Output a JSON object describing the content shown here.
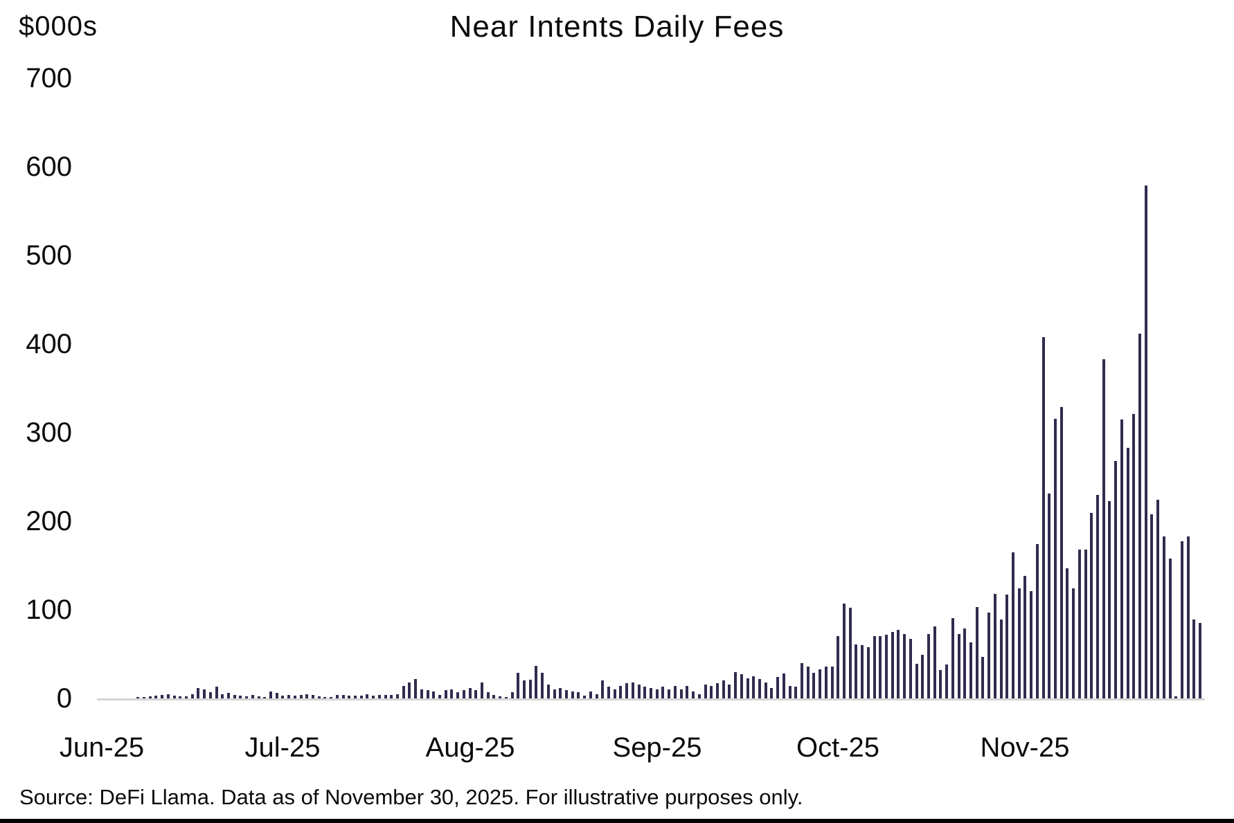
{
  "header": {
    "title": "Near Intents Daily Fees",
    "unit_label": "$000s"
  },
  "footer": {
    "source_note": "Source: DeFi Llama. Data as of November 30, 2025. For illustrative purposes only."
  },
  "colors": {
    "bar": "#322b4f",
    "baseline": "#d4d4d4",
    "text": "#0b0b0b",
    "bottom_rule": "#000000"
  },
  "chart_data": {
    "type": "bar",
    "title": "Near Intents Daily Fees",
    "ylabel": "$000s",
    "xlabel": "",
    "ylim": [
      0,
      700
    ],
    "y_ticks": [
      0,
      100,
      200,
      300,
      400,
      500,
      600,
      700
    ],
    "grid": false,
    "legend_position": "none",
    "x_tick_labels": [
      "Jun-25",
      "Jul-25",
      "Aug-25",
      "Sep-25",
      "Oct-25",
      "Nov-25"
    ],
    "series_name": "Near Intents daily fees ($000s)",
    "months": [
      {
        "label": "Jun-25",
        "values": [
          0,
          0,
          0,
          0,
          0,
          0,
          1,
          1,
          2,
          3,
          4,
          5,
          3,
          2,
          2,
          5,
          12,
          10,
          7,
          13,
          5,
          6,
          4,
          3,
          2,
          4,
          2,
          1,
          8,
          6
        ]
      },
      {
        "label": "Jul-25",
        "values": [
          3,
          4,
          3,
          4,
          5,
          4,
          2,
          1,
          1,
          4,
          4,
          3,
          3,
          3,
          5,
          3,
          4,
          4,
          4,
          5,
          14,
          18,
          22,
          10,
          9,
          8,
          4,
          9,
          10,
          7,
          9
        ]
      },
      {
        "label": "Aug-25",
        "values": [
          12,
          9,
          18,
          7,
          4,
          2,
          1,
          7,
          29,
          20,
          21,
          37,
          29,
          16,
          10,
          12,
          9,
          8,
          7,
          3,
          8,
          5,
          20,
          13,
          10,
          14,
          17,
          18,
          16,
          13,
          12
        ]
      },
      {
        "label": "Sep-25",
        "values": [
          10,
          13,
          10,
          14,
          10,
          14,
          8,
          5,
          16,
          14,
          17,
          20,
          16,
          30,
          27,
          23,
          25,
          22,
          18,
          12,
          24,
          28,
          14,
          13,
          40,
          36,
          29,
          33,
          36,
          36
        ]
      },
      {
        "label": "Oct-25",
        "values": [
          70,
          107,
          102,
          61,
          60,
          58,
          70,
          70,
          72,
          75,
          77,
          73,
          67,
          39,
          49,
          73,
          81,
          32,
          38,
          91,
          73,
          79,
          63,
          103,
          47,
          97,
          118,
          89,
          117,
          165,
          124
        ]
      },
      {
        "label": "Nov-25",
        "values": [
          138,
          121,
          174,
          408,
          231,
          316,
          329,
          147,
          124,
          168,
          168,
          209,
          230,
          383,
          223,
          268,
          315,
          283,
          321,
          412,
          579,
          208,
          224,
          183,
          158,
          2,
          177,
          183,
          89,
          85
        ]
      }
    ]
  }
}
